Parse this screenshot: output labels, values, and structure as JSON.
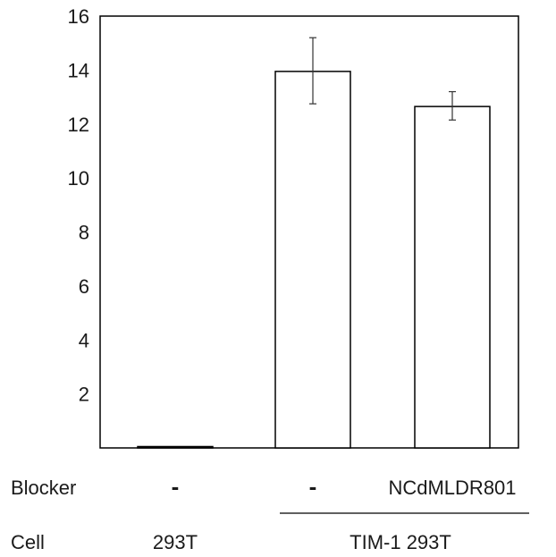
{
  "chart_data": {
    "type": "bar",
    "categories": [
      "293T",
      "TIM-1 293T",
      "TIM-1 293T"
    ],
    "values": [
      0.05,
      13.95,
      12.65
    ],
    "error_bars": [
      {
        "lower": 0.05,
        "upper": 0.05
      },
      {
        "lower": 12.75,
        "upper": 15.2
      },
      {
        "lower": 12.15,
        "upper": 13.2
      }
    ],
    "title": "",
    "xlabel": "",
    "ylabel": "",
    "ylim": [
      0,
      16
    ],
    "yticks": [
      "2",
      "4",
      "6",
      "8",
      "10",
      "12",
      "14",
      "16"
    ],
    "grid": false,
    "legend": "none",
    "bar_fill": "#ffffff",
    "bar_stroke": "#000000"
  },
  "rows": {
    "blocker": {
      "label": "Blocker",
      "values": [
        "-",
        "-",
        "NCdMLDR801"
      ]
    },
    "cell": {
      "label": "Cell",
      "groups": [
        "293T",
        "TIM-1 293T"
      ]
    }
  }
}
